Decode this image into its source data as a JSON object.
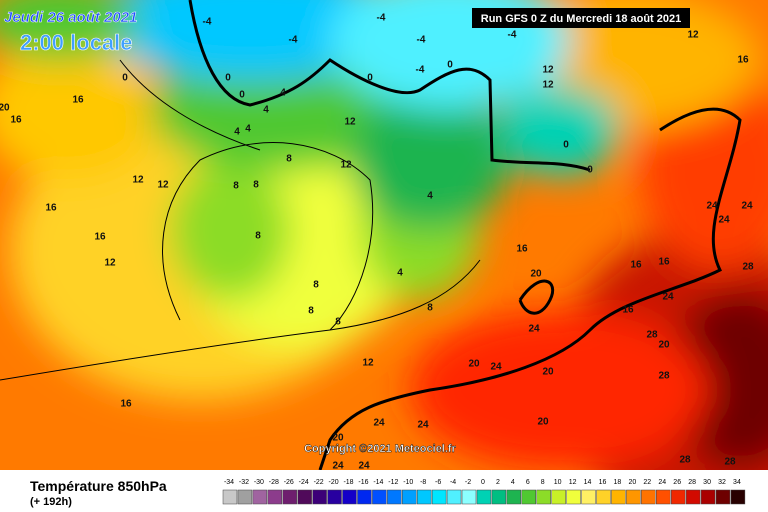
{
  "date": "Jeudi 26 août 2021",
  "local_time": "2:00 locale",
  "run": "Run GFS 0 Z du Mercredi 18 août 2021",
  "copyright": "Copyright ©2021 Meteociel.fr",
  "field": "Température 850hPa",
  "lead": "(+ 192h)",
  "scale": {
    "labels": [
      -34,
      -32,
      -30,
      -28,
      -26,
      -24,
      -22,
      -20,
      -18,
      -16,
      -14,
      -12,
      -10,
      -8,
      -6,
      -4,
      -2,
      0,
      2,
      4,
      6,
      8,
      10,
      12,
      14,
      16,
      18,
      20,
      22,
      24,
      26,
      28,
      30,
      32,
      34
    ],
    "colors": [
      "#c8c8c8",
      "#a0a0a0",
      "#a064a0",
      "#8c3c8c",
      "#6e1e6e",
      "#500a5a",
      "#3c0078",
      "#2800a0",
      "#1400c8",
      "#0028f0",
      "#0050ff",
      "#0078ff",
      "#00a0ff",
      "#00c8ff",
      "#00e6ff",
      "#50f0ff",
      "#8cffff",
      "#00d2b4",
      "#00be82",
      "#1eb450",
      "#50c832",
      "#8cdc28",
      "#c8f028",
      "#f0ff3c",
      "#fff064",
      "#ffd228",
      "#ffb400",
      "#ff9600",
      "#ff7300",
      "#ff5000",
      "#f02800",
      "#d20a00",
      "#aa0000",
      "#6e0000",
      "#280000"
    ]
  },
  "contour_labels": [
    0,
    0,
    0,
    0,
    0,
    0,
    0,
    -4,
    -4,
    -4,
    -4,
    -4,
    -4,
    12,
    12,
    12,
    12,
    12,
    12,
    12,
    12,
    12,
    16,
    16,
    16,
    16,
    16,
    16,
    16,
    16,
    16,
    16,
    20,
    20,
    20,
    20,
    20,
    20,
    20,
    24,
    24,
    24,
    24,
    24,
    24,
    24,
    24,
    24,
    24,
    28,
    28,
    28,
    28,
    28,
    8,
    8,
    8,
    8,
    8,
    8,
    8,
    8,
    4,
    4,
    4,
    4,
    4,
    4
  ]
}
